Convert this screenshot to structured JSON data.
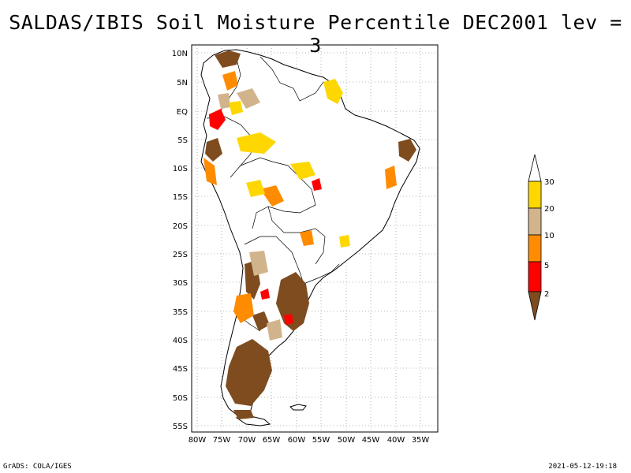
{
  "title": "SALDAS/IBIS Soil Moisture Percentile DEC2001 lev = 3",
  "lat_labels": [
    "10N",
    "5N",
    "EQ",
    "5S",
    "10S",
    "15S",
    "20S",
    "25S",
    "30S",
    "35S",
    "40S",
    "45S",
    "50S",
    "55S"
  ],
  "lon_labels": [
    "80W",
    "75W",
    "70W",
    "65W",
    "60W",
    "55W",
    "50W",
    "45W",
    "40W",
    "35W"
  ],
  "colorbar": {
    "labels": [
      "2",
      "5",
      "10",
      "20",
      "30"
    ],
    "colors": [
      "#7f4c1f",
      "#ff0000",
      "#ff8c00",
      "#d2b48c",
      "#ffd700",
      "#ffffff"
    ]
  },
  "footer": {
    "left": "GrADS: COLA/IGES",
    "right": "2021-05-12-19:18"
  }
}
